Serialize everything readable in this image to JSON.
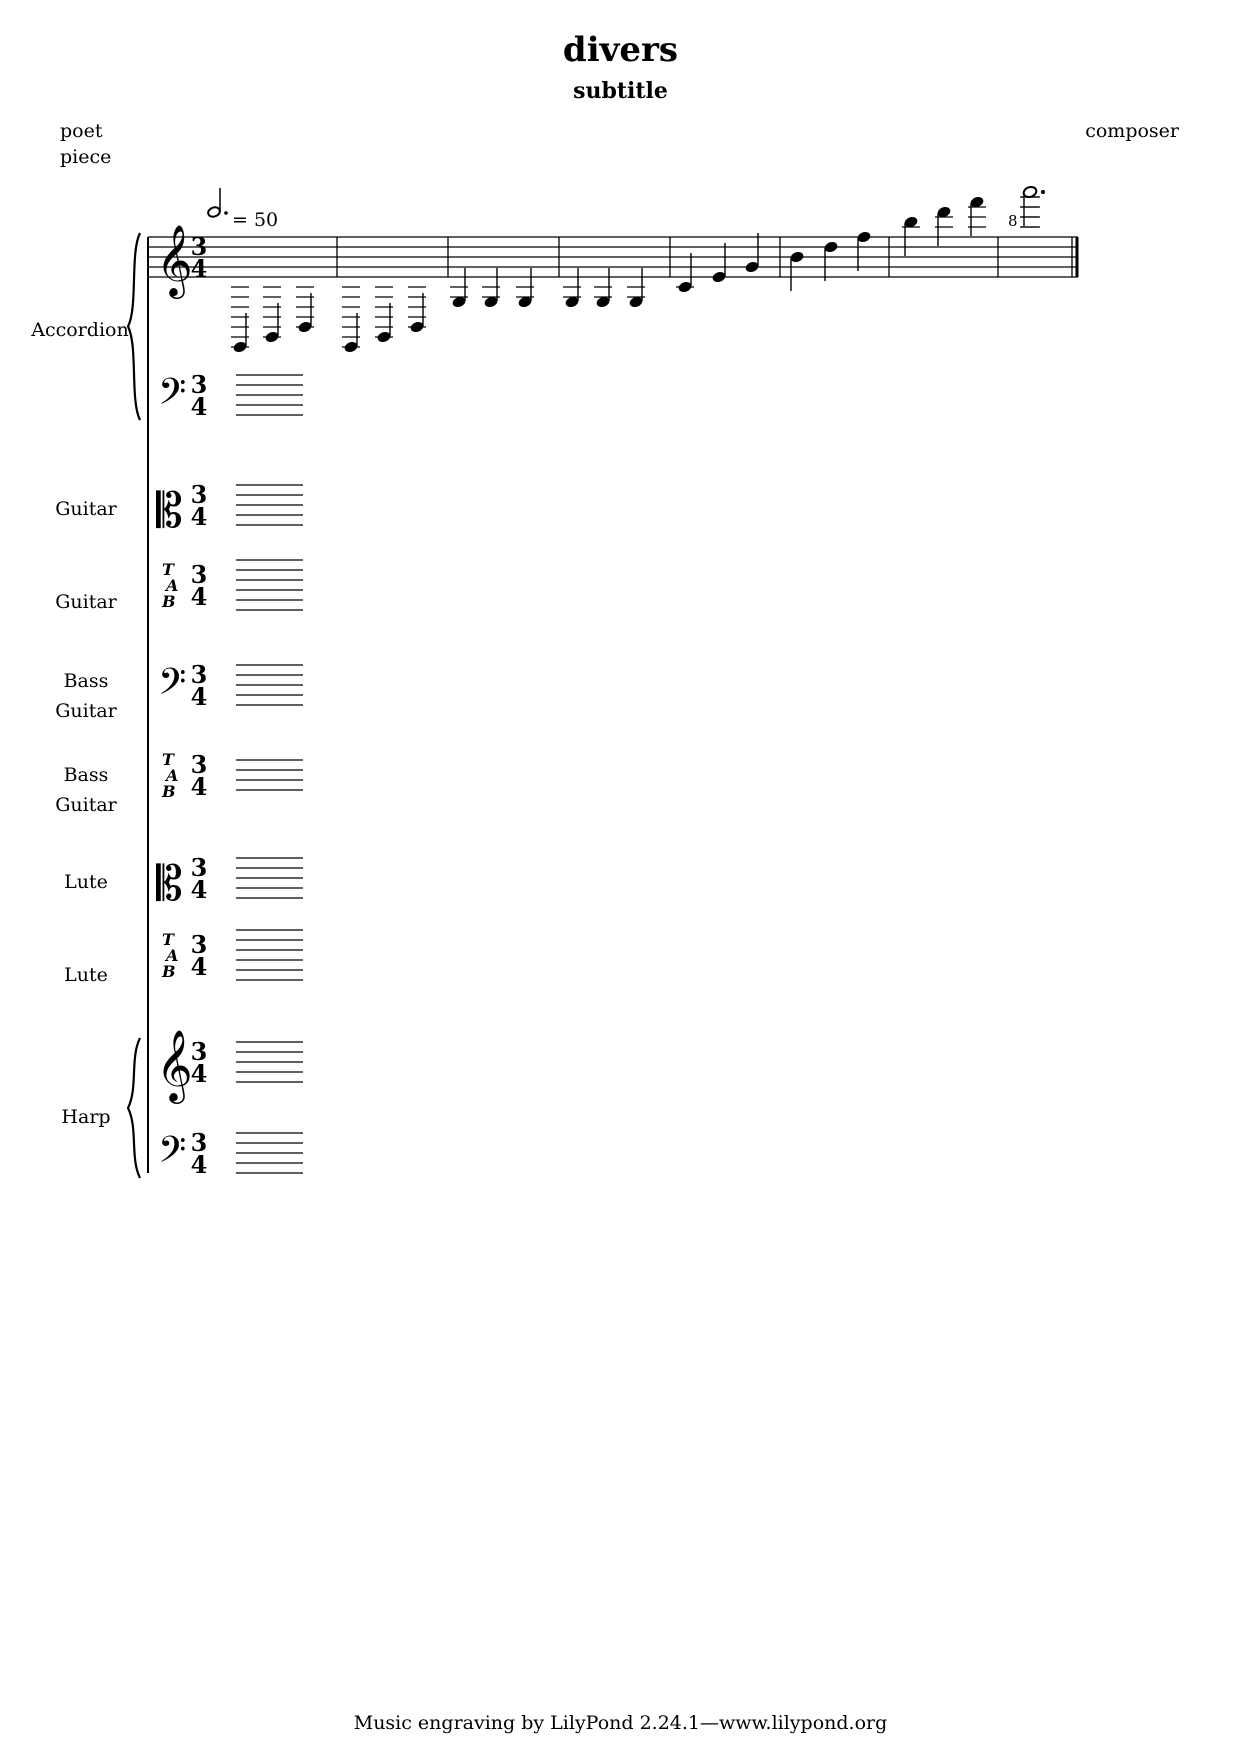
{
  "header": {
    "title": "divers",
    "subtitle": "subtitle",
    "poet": "poet",
    "piece": "piece",
    "composer": "composer"
  },
  "tempo": {
    "value": "= 50"
  },
  "time_signature": {
    "numerator": "3",
    "denominator": "4"
  },
  "octave_mark": "8",
  "instruments": [
    {
      "name": "Accordion",
      "clef": "treble + bass"
    },
    {
      "name": "Guitar",
      "clef": "alto"
    },
    {
      "name": "Guitar",
      "clef": "tab"
    },
    {
      "name_line1": "Bass",
      "name_line2": "Guitar",
      "clef": "bass"
    },
    {
      "name_line1": "Bass",
      "name_line2": "Guitar",
      "clef": "tab"
    },
    {
      "name": "Lute",
      "clef": "alto"
    },
    {
      "name": "Lute",
      "clef": "tab"
    },
    {
      "name": "Harp",
      "clef": "treble + bass"
    }
  ],
  "tab_letters": {
    "t": "T",
    "a": "A",
    "b": "B"
  },
  "footer": "Music engraving by LilyPond 2.24.1—www.lilypond.org"
}
